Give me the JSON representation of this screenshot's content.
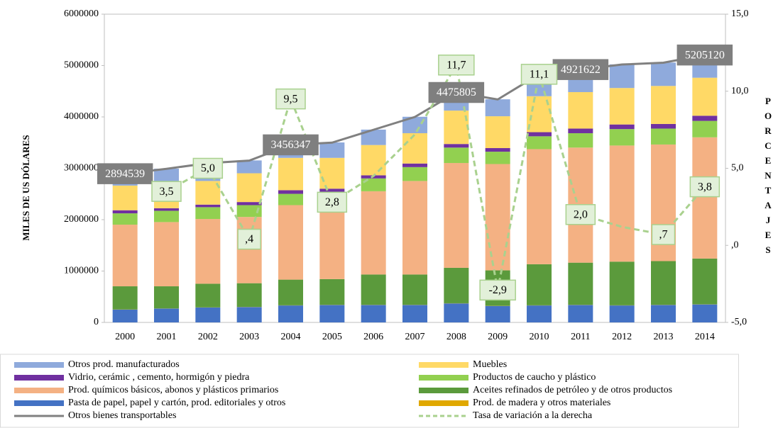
{
  "chart_data": {
    "type": "bar",
    "categories": [
      "2000",
      "2001",
      "2002",
      "2003",
      "2004",
      "2005",
      "2006",
      "2007",
      "2008",
      "2009",
      "2010",
      "2011",
      "2012",
      "2013",
      "2014"
    ],
    "ylabel": "MILES DE US DÓLARES",
    "y2label": "PORCENTAJES",
    "ylim": [
      0,
      6000000
    ],
    "yticks": [
      0,
      1000000,
      2000000,
      3000000,
      4000000,
      5000000,
      6000000
    ],
    "y2lim": [
      -5,
      15
    ],
    "y2ticks": [
      {
        "value": -5,
        "label": "-5,0"
      },
      {
        "value": 0,
        "label": ",0"
      },
      {
        "value": 5,
        "label": "5,0"
      },
      {
        "value": 10,
        "label": "10,0"
      },
      {
        "value": 15,
        "label": "15,0"
      }
    ],
    "grid": false,
    "series": [
      {
        "name": "Pasta de papel, papel y cartón, prod. editoriales y otros",
        "color": "#4472c4",
        "values": [
          250000,
          270000,
          290000,
          300000,
          330000,
          340000,
          340000,
          340000,
          370000,
          320000,
          330000,
          340000,
          330000,
          340000,
          350000
        ]
      },
      {
        "name": "Prod. de madera  y otros materiales",
        "color": "#e0a800",
        "values": [
          3000,
          3000,
          3000,
          3000,
          3000,
          3000,
          3000,
          3000,
          3000,
          3000,
          3000,
          3000,
          3000,
          3000,
          3000
        ]
      },
      {
        "name": "Aceites refinados de petróleo y de otros productos",
        "color": "#5b9a3c",
        "values": [
          450000,
          430000,
          460000,
          460000,
          500000,
          500000,
          590000,
          590000,
          690000,
          690000,
          800000,
          820000,
          850000,
          850000,
          890000
        ]
      },
      {
        "name": "Prod. químicos básicos, abonos y plásticos primarios",
        "color": "#f4b183",
        "values": [
          1200000,
          1250000,
          1260000,
          1290000,
          1450000,
          1450000,
          1620000,
          1820000,
          2040000,
          2070000,
          2240000,
          2240000,
          2260000,
          2270000,
          2360000
        ]
      },
      {
        "name": "Productos de caucho y plástico",
        "color": "#92d050",
        "values": [
          220000,
          220000,
          230000,
          230000,
          220000,
          250000,
          250000,
          270000,
          300000,
          240000,
          250000,
          280000,
          320000,
          310000,
          320000
        ]
      },
      {
        "name": "Vidrio, cerámic , cemento,  hormigón y piedra",
        "color": "#7030a0",
        "values": [
          60000,
          50000,
          50000,
          60000,
          70000,
          60000,
          60000,
          70000,
          70000,
          70000,
          80000,
          90000,
          90000,
          90000,
          100000
        ]
      },
      {
        "name": "Muebles",
        "color": "#ffd966",
        "values": [
          480000,
          430000,
          460000,
          560000,
          630000,
          600000,
          590000,
          590000,
          650000,
          620000,
          700000,
          710000,
          710000,
          740000,
          740000
        ]
      },
      {
        "name": "Otros prod. manufacturados",
        "color": "#8faadc",
        "values": [
          235000,
          340000,
          350000,
          250000,
          256000,
          300000,
          300000,
          320000,
          355000,
          330000,
          430000,
          441000,
          460000,
          455000,
          445000
        ]
      },
      {
        "name": "Otros bienes transportables",
        "color": "#808080",
        "line": true,
        "values": [
          2894539,
          2990000,
          3100000,
          3150000,
          3456347,
          3500000,
          3750000,
          4000000,
          4475805,
          4340000,
          4830000,
          4921622,
          5020000,
          5055000,
          5205120
        ],
        "value_labels": [
          "2894539",
          null,
          null,
          null,
          "3456347",
          null,
          null,
          null,
          "4475805",
          null,
          null,
          "4921622",
          null,
          null,
          "5205120"
        ]
      },
      {
        "name": "Tasa de variación a la derecha",
        "color": "#a9d18e",
        "line": true,
        "dashed": true,
        "axis": "y2",
        "values": [
          null,
          3.5,
          5.0,
          0.4,
          9.5,
          2.8,
          4.5,
          7.2,
          11.7,
          -2.9,
          11.1,
          2.0,
          1.2,
          0.7,
          3.8
        ],
        "value_labels": [
          null,
          "3,5",
          "5,0",
          ",4",
          "9,5",
          "2,8",
          null,
          null,
          "11,7",
          "-2,9",
          "11,1",
          "2,0",
          null,
          ",7",
          "3,8"
        ]
      }
    ]
  }
}
